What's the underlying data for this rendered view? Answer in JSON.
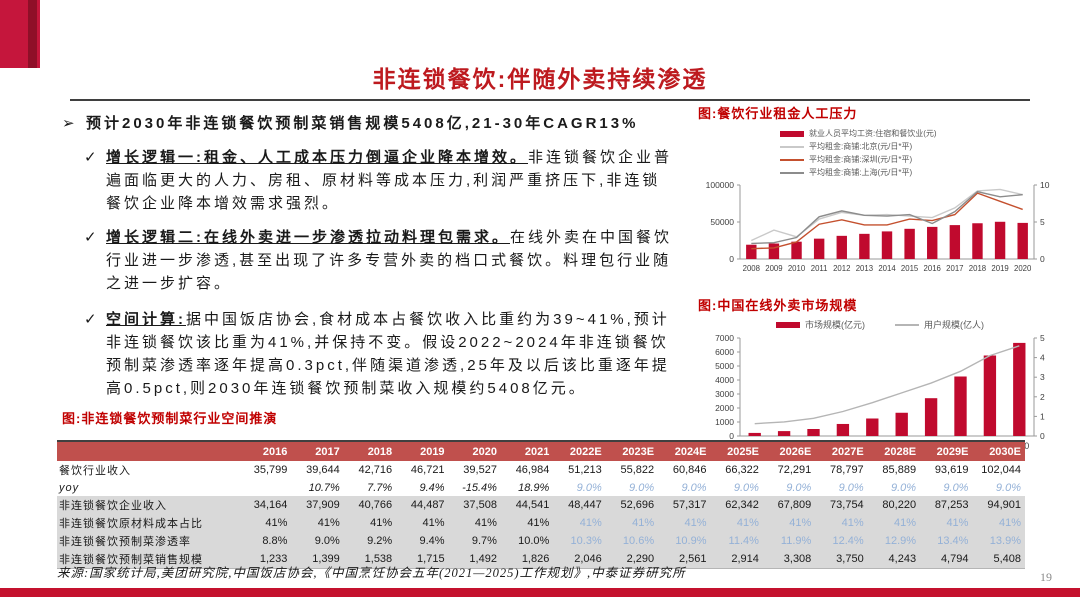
{
  "slide": {
    "title": "非连锁餐饮:伴随外卖持续渗透",
    "page_number": "19",
    "accent_color": "#c4112e",
    "title_color": "#bd1a1f",
    "caption_color": "#c00000"
  },
  "left": {
    "bullet_glyph": "➢",
    "check_glyph": "✓",
    "lead": "预计2030年非连锁餐饮预制菜销售规模5408亿,21-30年CAGR13%",
    "points": [
      {
        "lead": "增长逻辑一:租金、人工成本压力倒逼企业降本增效。",
        "rest": "非连锁餐饮企业普遍面临更大的人力、房租、原材料等成本压力,利润严重挤压下,非连锁餐饮企业降本增效需求强烈。"
      },
      {
        "lead": "增长逻辑二:在线外卖进一步渗透拉动料理包需求。",
        "rest": "在线外卖在中国餐饮行业进一步渗透,甚至出现了许多专营外卖的档口式餐饮。料理包行业随之进一步扩容。"
      },
      {
        "lead": "空间计算:",
        "rest": "据中国饭店协会,食材成本占餐饮收入比重约为39~41%,预计非连锁餐饮该比重为41%,并保持不变。假设2022~2024年非连锁餐饮预制菜渗透率逐年提高0.3pct,伴随渠道渗透,25年及以后该比重逐年提高0.5pct,则2030年连锁餐饮预制菜收入规模约5408亿元。"
      }
    ],
    "table_caption": "图:非连锁餐饮预制菜行业空间推演"
  },
  "chart_data": [
    {
      "type": "bar+line",
      "title": "图:餐饮行业租金人工压力",
      "legend_position": "top",
      "categories": [
        "2008",
        "2009",
        "2010",
        "2011",
        "2012",
        "2013",
        "2014",
        "2015",
        "2016",
        "2017",
        "2018",
        "2019",
        "2020"
      ],
      "bar_series": {
        "name": "就业人员平均工资:住宿和餐饮业(元)",
        "color": "#c00a2e",
        "axis": "left",
        "values": [
          19300,
          20900,
          23400,
          27500,
          31300,
          34000,
          37300,
          40800,
          43400,
          45800,
          48300,
          50300,
          48800
        ]
      },
      "line_series": [
        {
          "name": "平均租金:商铺:北京(元/日*平)",
          "color": "#c9c9c9",
          "axis": "right",
          "values": [
            2.5,
            3.9,
            3.0,
            5.4,
            6.3,
            5.9,
            6.0,
            5.8,
            5.6,
            6.9,
            9.2,
            9.4,
            8.7
          ]
        },
        {
          "name": "平均租金:商铺:深圳(元/日*平)",
          "color": "#c4502e",
          "axis": "right",
          "values": [
            1.4,
            1.5,
            2.3,
            4.7,
            5.3,
            4.6,
            4.6,
            5.4,
            5.2,
            6.0,
            8.9,
            7.8,
            6.7
          ]
        },
        {
          "name": "平均租金:商铺:上海(元/日*平)",
          "color": "#8c8c8c",
          "axis": "right",
          "values": [
            2.1,
            2.2,
            2.9,
            5.7,
            6.5,
            5.9,
            5.8,
            6.0,
            4.8,
            6.4,
            9.1,
            8.4,
            8.7
          ]
        }
      ],
      "left_axis": {
        "min": 0,
        "max": 100000,
        "ticks": [
          "0",
          "50000",
          "100000"
        ]
      },
      "right_axis": {
        "min": 0,
        "max": 10,
        "ticks": [
          "0",
          "5",
          "10"
        ]
      },
      "grid": false
    },
    {
      "type": "bar+line",
      "title": "图:中国在线外卖市场规模",
      "legend_position": "top",
      "categories": [
        "2011",
        "2012",
        "2013",
        "2014",
        "2015",
        "2016",
        "2017",
        "2018",
        "2019",
        "2020"
      ],
      "bar_series": {
        "name": "市场规模(亿元)",
        "color": "#c00a2e",
        "axis": "left",
        "values": [
          220,
          350,
          500,
          860,
          1250,
          1660,
          2700,
          4250,
          5750,
          6650
        ]
      },
      "line_series": [
        {
          "name": "用户规模(亿人)",
          "color": "#b5b5b5",
          "axis": "right",
          "values": [
            0.63,
            0.72,
            0.9,
            1.25,
            1.7,
            2.2,
            2.7,
            3.3,
            4.1,
            4.6
          ]
        }
      ],
      "left_axis": {
        "min": 0,
        "max": 7000,
        "ticks": [
          "0",
          "1000",
          "2000",
          "3000",
          "4000",
          "5000",
          "6000",
          "7000"
        ]
      },
      "right_axis": {
        "min": 0,
        "max": 5,
        "ticks": [
          "0",
          "1",
          "2",
          "3",
          "4",
          "5"
        ]
      },
      "grid": false
    }
  ],
  "table": {
    "columns": [
      "",
      "2016",
      "2017",
      "2018",
      "2019",
      "2020",
      "2021",
      "2022E",
      "2023E",
      "2024E",
      "2025E",
      "2026E",
      "2027E",
      "2028E",
      "2029E",
      "2030E"
    ],
    "rows": [
      {
        "label": "餐饮行业收入",
        "shaded": false,
        "italic": false,
        "est_blue": false,
        "values": [
          "35,799",
          "39,644",
          "42,716",
          "46,721",
          "39,527",
          "46,984",
          "51,213",
          "55,822",
          "60,846",
          "66,322",
          "72,291",
          "78,797",
          "85,889",
          "93,619",
          "102,044"
        ]
      },
      {
        "label": "yoy",
        "shaded": false,
        "italic": true,
        "est_blue": true,
        "values": [
          "",
          "10.7%",
          "7.7%",
          "9.4%",
          "-15.4%",
          "18.9%",
          "9.0%",
          "9.0%",
          "9.0%",
          "9.0%",
          "9.0%",
          "9.0%",
          "9.0%",
          "9.0%",
          "9.0%"
        ]
      },
      {
        "label": "非连锁餐饮企业收入",
        "shaded": true,
        "italic": false,
        "est_blue": false,
        "values": [
          "34,164",
          "37,909",
          "40,766",
          "44,487",
          "37,508",
          "44,541",
          "48,447",
          "52,696",
          "57,317",
          "62,342",
          "67,809",
          "73,754",
          "80,220",
          "87,253",
          "94,901"
        ]
      },
      {
        "label": "非连锁餐饮原材料成本占比",
        "shaded": true,
        "italic": false,
        "est_blue": true,
        "values": [
          "41%",
          "41%",
          "41%",
          "41%",
          "41%",
          "41%",
          "41%",
          "41%",
          "41%",
          "41%",
          "41%",
          "41%",
          "41%",
          "41%",
          "41%"
        ]
      },
      {
        "label": "非连锁餐饮预制菜渗透率",
        "shaded": true,
        "italic": false,
        "est_blue": true,
        "values": [
          "8.8%",
          "9.0%",
          "9.2%",
          "9.4%",
          "9.7%",
          "10.0%",
          "10.3%",
          "10.6%",
          "10.9%",
          "11.4%",
          "11.9%",
          "12.4%",
          "12.9%",
          "13.4%",
          "13.9%"
        ]
      },
      {
        "label": "非连锁餐饮预制菜销售规模",
        "shaded": true,
        "italic": false,
        "est_blue": false,
        "values": [
          "1,233",
          "1,399",
          "1,538",
          "1,715",
          "1,492",
          "1,826",
          "2,046",
          "2,290",
          "2,561",
          "2,914",
          "3,308",
          "3,750",
          "4,243",
          "4,794",
          "5,408"
        ]
      }
    ]
  },
  "footer": {
    "source": "来源:国家统计局,美团研究院,中国饭店协会,《中国烹饪协会五年(2021—2025)工作规划》,中泰证券研究所"
  }
}
